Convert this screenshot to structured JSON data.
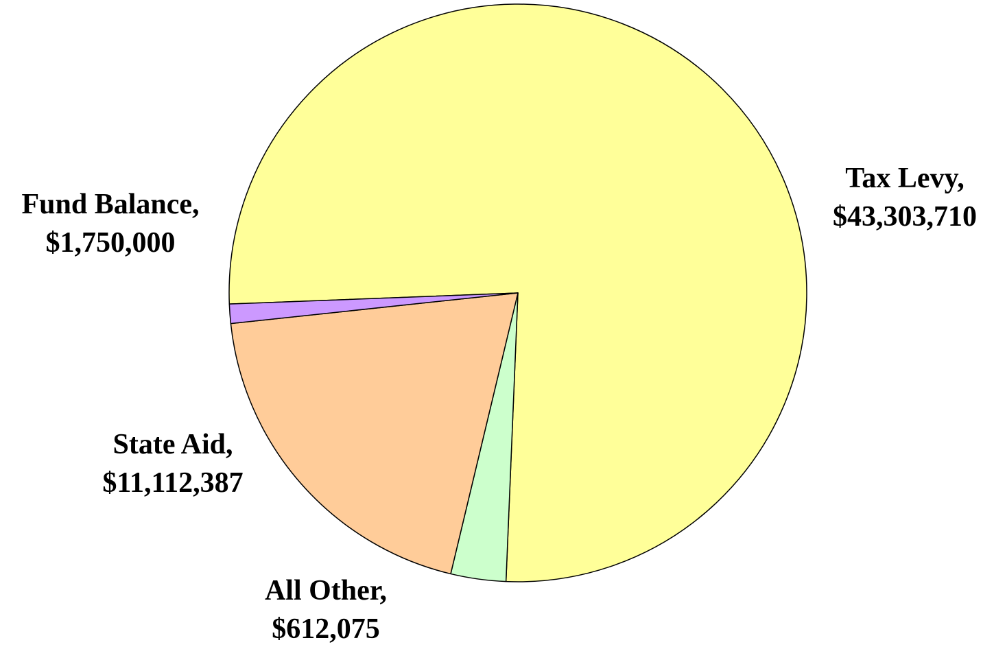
{
  "chart_data": {
    "type": "pie",
    "slices": [
      {
        "name": "Tax Levy,",
        "value_label": "$43,303,710",
        "value": 43303710,
        "color": "#FFFF99"
      },
      {
        "name": "Fund Balance,",
        "value_label": "$1,750,000",
        "value": 1750000,
        "color": "#CCFFCC"
      },
      {
        "name": "State Aid,",
        "value_label": "$11,112,387",
        "value": 11112387,
        "color": "#FFCC99"
      },
      {
        "name": "All Other,",
        "value_label": "$612,075",
        "value": 612075,
        "color": "#CC99FF"
      }
    ]
  }
}
